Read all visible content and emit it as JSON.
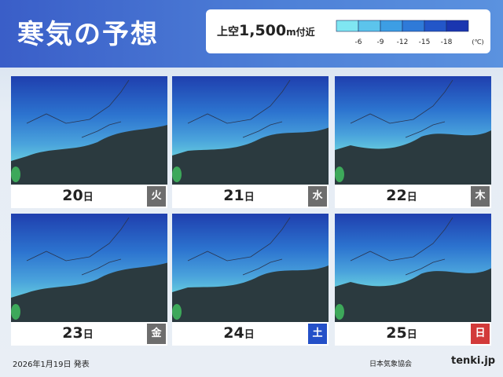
{
  "header": {
    "title": "寒気の予想"
  },
  "legend": {
    "label_prefix": "上空",
    "label_value": "1,500",
    "label_suffix": "m付近",
    "ticks": [
      -6,
      -9,
      -12,
      -15,
      -18
    ],
    "unit": "(℃)",
    "colors": [
      "#7fe6f2",
      "#5cc4ec",
      "#3d9ee4",
      "#2f7ad8",
      "#2356c8",
      "#1a36b0"
    ]
  },
  "panels": [
    {
      "day": "20",
      "suffix": "日",
      "weekday": "火",
      "color": "#6d6d6d"
    },
    {
      "day": "21",
      "suffix": "日",
      "weekday": "水",
      "color": "#6d6d6d"
    },
    {
      "day": "22",
      "suffix": "日",
      "weekday": "木",
      "color": "#6d6d6d"
    },
    {
      "day": "23",
      "suffix": "日",
      "weekday": "金",
      "color": "#6d6d6d"
    },
    {
      "day": "24",
      "suffix": "日",
      "weekday": "土",
      "color": "#2450c8"
    },
    {
      "day": "25",
      "suffix": "日",
      "weekday": "日",
      "color": "#d23a3a"
    }
  ],
  "footer": {
    "date": "2026年1月19日 発表",
    "org": "日本気象協会",
    "brand": "tenki.jp"
  }
}
